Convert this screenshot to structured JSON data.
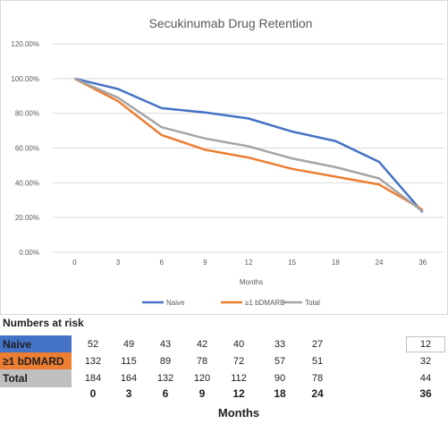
{
  "chart_data": {
    "type": "line",
    "title": "Secukinumab Drug Retention",
    "xlabel": "Months",
    "ylabel": "",
    "categories": [
      "0",
      "3",
      "6",
      "9",
      "12",
      "15",
      "18",
      "24",
      "36"
    ],
    "y_ticks": [
      "0.00%",
      "20.00%",
      "40.00%",
      "60.00%",
      "80.00%",
      "100.00%",
      "120.00%"
    ],
    "ylim": [
      0,
      120
    ],
    "grid": true,
    "legend_position": "bottom",
    "series": [
      {
        "name": "Naive",
        "color": "#4472c4",
        "values": [
          100,
          94,
          83,
          80.5,
          77,
          69.5,
          64,
          52,
          23
        ]
      },
      {
        "name": "≥1 bDMARD",
        "color": "#ed7d31",
        "values": [
          100,
          87,
          67.5,
          59,
          54.5,
          48,
          43.5,
          39,
          24.5
        ]
      },
      {
        "name": "Total",
        "color": "#a5a5a5",
        "values": [
          100,
          89,
          72,
          65.5,
          61,
          54,
          49,
          42.5,
          23.5
        ]
      }
    ]
  },
  "risk_table": {
    "title": "Numbers at risk",
    "rows": [
      {
        "label": "Naive",
        "bg": "#4472c4",
        "values": [
          "52",
          "49",
          "43",
          "42",
          "40",
          "33",
          "27",
          "12"
        ]
      },
      {
        "label": "≥1 bDMARD",
        "bg": "#ed7d31",
        "values": [
          "132",
          "115",
          "89",
          "78",
          "72",
          "57",
          "51",
          "32"
        ]
      },
      {
        "label": "Total",
        "bg": "#bfbfbf",
        "values": [
          "184",
          "164",
          "132",
          "120",
          "112",
          "90",
          "78",
          "44"
        ]
      }
    ],
    "months": [
      "0",
      "3",
      "6",
      "9",
      "12",
      "18",
      "24",
      "36"
    ],
    "months_label": "Months"
  }
}
